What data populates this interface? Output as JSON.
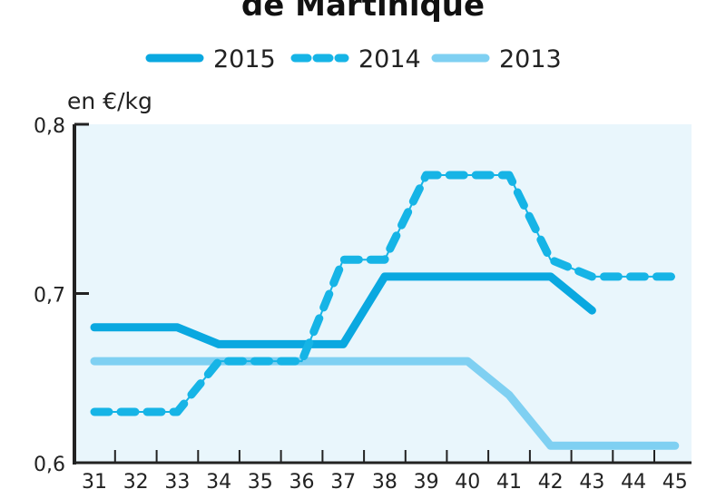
{
  "title": "de Martinique",
  "chart_data": {
    "type": "line",
    "title": "de Martinique",
    "ylabel": "en €/kg",
    "xlabel": "",
    "categories": [
      "31",
      "32",
      "33",
      "34",
      "35",
      "36",
      "37",
      "38",
      "39",
      "40",
      "41",
      "42",
      "43",
      "44",
      "45"
    ],
    "y_ticks": [
      "0,6",
      "0,7",
      "0,8"
    ],
    "ylim": [
      0.6,
      0.8
    ],
    "legend_position": "top",
    "grid": false,
    "series": [
      {
        "name": "2015",
        "style": "solid",
        "color": "#0aa8e0",
        "values": [
          0.68,
          0.68,
          0.68,
          0.67,
          0.67,
          0.67,
          0.67,
          0.71,
          0.71,
          0.71,
          0.71,
          0.71,
          0.69,
          null,
          null
        ]
      },
      {
        "name": "2014",
        "style": "dashed",
        "color": "#16b4e6",
        "values": [
          0.63,
          0.63,
          0.63,
          0.66,
          0.66,
          0.66,
          0.72,
          0.72,
          0.77,
          0.77,
          0.77,
          0.72,
          0.71,
          0.71,
          0.71
        ]
      },
      {
        "name": "2013",
        "style": "solid",
        "color": "#7fd0f2",
        "values": [
          0.66,
          0.66,
          0.66,
          0.66,
          0.66,
          0.66,
          0.66,
          0.66,
          0.66,
          0.66,
          0.64,
          0.61,
          0.61,
          0.61,
          0.61
        ]
      }
    ]
  }
}
